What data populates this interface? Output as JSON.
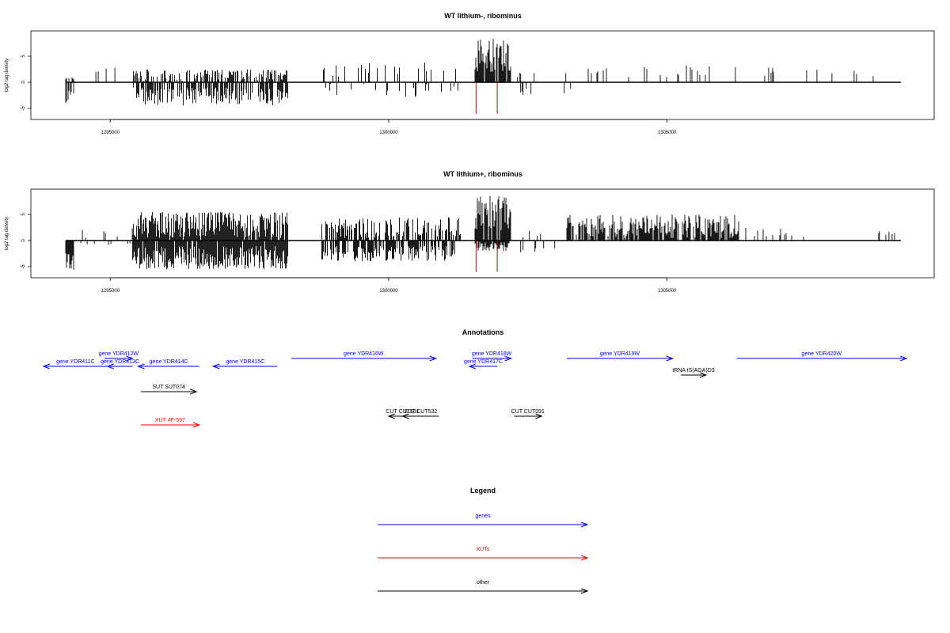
{
  "panels": [
    {
      "title": "WT lithium-, ribominus",
      "ylabel": "log2 tag density"
    },
    {
      "title": "WT lithium+, ribominus",
      "ylabel": "log2 tag density"
    }
  ],
  "annotations_title": "Annotations",
  "legend_title": "Legend",
  "chart_data": {
    "type": "bar",
    "x_range": [
      1294200,
      1309200
    ],
    "x_ticks": [
      1295000,
      1300000,
      1305000
    ],
    "x_tick_labels": [
      "1295000",
      "1300000",
      "1305000"
    ],
    "y_ticks": [
      -5,
      0,
      5
    ],
    "y_tick_labels": [
      "-5",
      "0",
      "5"
    ],
    "ylim": [
      -6.5,
      9.5
    ],
    "grid": false,
    "series": [
      {
        "name": "WT lithium-, ribominus",
        "color": "#000000",
        "segments": [
          {
            "x": [
              1294200,
              1294350
            ],
            "density": 0.7,
            "pos": [
              0.5,
              1.0
            ],
            "neg": [
              1.0,
              4.0
            ]
          },
          {
            "x": [
              1294400,
              1295500
            ],
            "density": 0.08,
            "pos": [
              1.5,
              3.5
            ],
            "neg": [
              0,
              0
            ]
          },
          {
            "x": [
              1295400,
              1298200
            ],
            "density": 0.6,
            "pos": [
              0.0,
              2.5
            ],
            "neg": [
              1.0,
              4.5
            ]
          },
          {
            "x": [
              1298800,
              1301300
            ],
            "density": 0.12,
            "pos": [
              1.0,
              4.0
            ],
            "neg": [
              0,
              3.0
            ]
          },
          {
            "x": [
              1301550,
              1302200
            ],
            "density": 0.9,
            "pos": [
              2.0,
              8.5
            ],
            "neg": [
              0,
              0
            ]
          },
          {
            "x": [
              1302300,
              1303300
            ],
            "density": 0.05,
            "pos": [
              1.0,
              2.0
            ],
            "neg": [
              1.0,
              2.5
            ]
          },
          {
            "x": [
              1303300,
              1306000
            ],
            "density": 0.12,
            "pos": [
              1.0,
              3.5
            ],
            "neg": [
              0,
              0
            ]
          },
          {
            "x": [
              1306000,
              1309000
            ],
            "density": 0.04,
            "pos": [
              1.0,
              3.0
            ],
            "neg": [
              0,
              0
            ]
          }
        ],
        "highlights": [
          {
            "x": 1301570,
            "y": -6.0
          },
          {
            "x": 1301950,
            "y": -6.0
          }
        ]
      },
      {
        "name": "WT lithium+, ribominus",
        "color": "#000000",
        "segments": [
          {
            "x": [
              1294200,
              1294350
            ],
            "density": 0.9,
            "pos": [
              0,
              0
            ],
            "neg": [
              2.0,
              6.0
            ]
          },
          {
            "x": [
              1294400,
              1295400
            ],
            "density": 0.1,
            "pos": [
              0.5,
              2.5
            ],
            "neg": [
              0,
              1.0
            ]
          },
          {
            "x": [
              1295400,
              1298200
            ],
            "density": 0.95,
            "pos": [
              0.5,
              5.5
            ],
            "neg": [
              1.0,
              5.5
            ]
          },
          {
            "x": [
              1298800,
              1301300
            ],
            "density": 0.6,
            "pos": [
              0.5,
              4.5
            ],
            "neg": [
              1.0,
              4.0
            ]
          },
          {
            "x": [
              1301550,
              1302200
            ],
            "density": 0.95,
            "pos": [
              2.0,
              8.7
            ],
            "neg": [
              0,
              2.0
            ]
          },
          {
            "x": [
              1302200,
              1303000
            ],
            "density": 0.1,
            "pos": [
              0.5,
              2.0
            ],
            "neg": [
              1.0,
              2.5
            ]
          },
          {
            "x": [
              1303200,
              1306300
            ],
            "density": 0.8,
            "pos": [
              0.5,
              5.0
            ],
            "neg": [
              0,
              0
            ]
          },
          {
            "x": [
              1306300,
              1307500
            ],
            "density": 0.1,
            "pos": [
              0.5,
              2.5
            ],
            "neg": [
              0,
              0
            ]
          },
          {
            "x": [
              1308800,
              1309150
            ],
            "density": 0.2,
            "pos": [
              1.0,
              2.0
            ],
            "neg": [
              0,
              0
            ]
          }
        ],
        "highlights": [
          {
            "x": 1301570,
            "y": -6.0
          },
          {
            "x": 1301950,
            "y": -6.0
          }
        ]
      }
    ],
    "annotations": [
      {
        "label": "gene YDR411C",
        "start": 1293800,
        "end": 1294950,
        "strand": "-",
        "type": "gene"
      },
      {
        "label": "gene YDR412W",
        "start": 1294900,
        "end": 1295400,
        "strand": "+",
        "type": "gene"
      },
      {
        "label": "gene YDR413C",
        "start": 1294950,
        "end": 1295400,
        "strand": "-",
        "type": "gene"
      },
      {
        "label": "gene YDR414C",
        "start": 1295500,
        "end": 1296600,
        "strand": "-",
        "type": "gene"
      },
      {
        "label": "gene YDR415C",
        "start": 1296850,
        "end": 1298000,
        "strand": "-",
        "type": "gene"
      },
      {
        "label": "gene YDR416W",
        "start": 1298250,
        "end": 1300850,
        "strand": "+",
        "type": "gene"
      },
      {
        "label": "gene YDR417C",
        "start": 1301450,
        "end": 1301950,
        "strand": "-",
        "type": "gene"
      },
      {
        "label": "gene YDR418W",
        "start": 1301500,
        "end": 1302200,
        "strand": "+",
        "type": "gene"
      },
      {
        "label": "gene YDR419W",
        "start": 1303200,
        "end": 1305100,
        "strand": "+",
        "type": "gene"
      },
      {
        "label": "gene YDR420W",
        "start": 1306250,
        "end": 1309300,
        "strand": "+",
        "type": "gene"
      },
      {
        "label": "tRNA tS(AGA)D3",
        "start": 1305250,
        "end": 1305700,
        "strand": "+",
        "type": "other"
      },
      {
        "label": "SUT SUT074",
        "start": 1295550,
        "end": 1296550,
        "strand": "+",
        "type": "other"
      },
      {
        "label": "XUT 4F-597",
        "start": 1295550,
        "end": 1296600,
        "strand": "+",
        "type": "xut"
      },
      {
        "label": "CUT CUT531",
        "start": 1300000,
        "end": 1300500,
        "strand": "-",
        "type": "other"
      },
      {
        "label": "SUT CUT532",
        "start": 1300250,
        "end": 1300900,
        "strand": "-",
        "type": "other"
      },
      {
        "label": "CUT CUT091",
        "start": 1302250,
        "end": 1302750,
        "strand": "+",
        "type": "other"
      }
    ],
    "legend": [
      {
        "label": "genes",
        "color": "#0000ff"
      },
      {
        "label": "XUTs",
        "color": "#ff0000"
      },
      {
        "label": "other",
        "color": "#000000"
      }
    ]
  }
}
